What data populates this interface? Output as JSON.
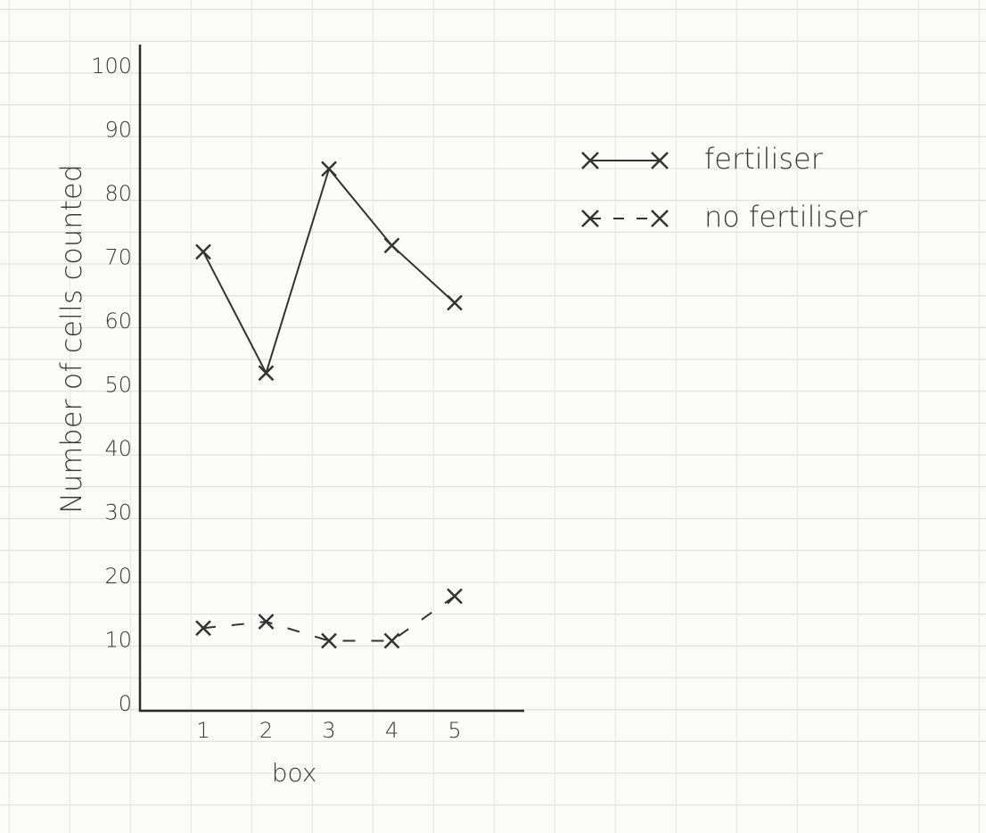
{
  "chart_data": {
    "type": "line",
    "x_label": "box",
    "y_label": "Number of cells counted",
    "categories": [
      "1",
      "2",
      "3",
      "4",
      "5"
    ],
    "series": [
      {
        "name": "fertiliser",
        "color": "#333333",
        "dashed": false,
        "values": [
          71,
          52,
          84,
          72,
          63
        ]
      },
      {
        "name": "no fertiliser",
        "color": "#333333",
        "dashed": true,
        "values": [
          12,
          13,
          10,
          10,
          17
        ]
      }
    ],
    "ylim": [
      0,
      100
    ],
    "yticks": [
      0,
      10,
      20,
      30,
      40,
      50,
      60,
      70,
      80,
      90,
      100
    ]
  }
}
